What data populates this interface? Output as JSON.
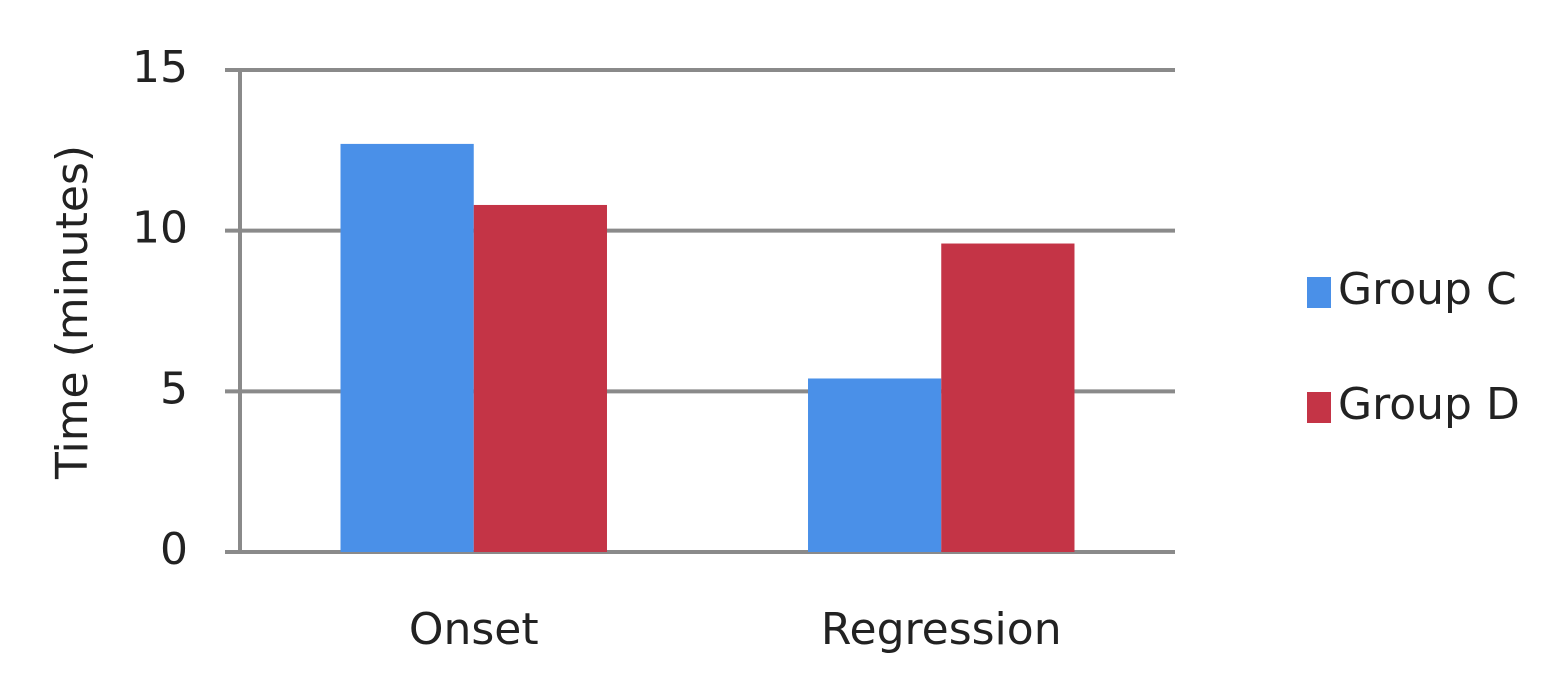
{
  "chart_data": {
    "type": "bar",
    "y_label": "Time (minutes)",
    "categories": [
      "Onset",
      "Regression"
    ],
    "series": [
      {
        "name": "Group C",
        "color": "#4a90e8",
        "values": [
          12.7,
          5.4
        ]
      },
      {
        "name": "Group D",
        "color": "#c43446",
        "values": [
          10.8,
          9.6
        ]
      }
    ],
    "ylim": [
      0,
      15
    ],
    "yticks": [
      0,
      5,
      10,
      15
    ],
    "grid": true,
    "legend": "right"
  }
}
